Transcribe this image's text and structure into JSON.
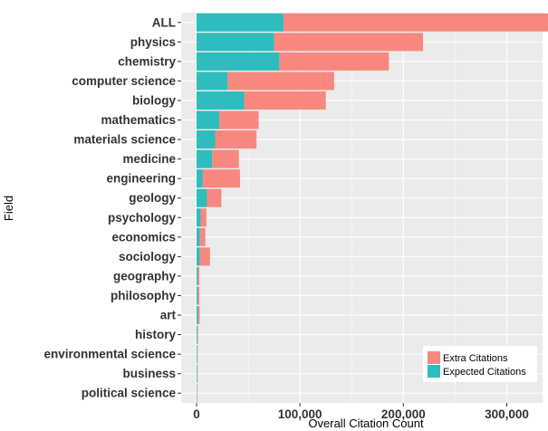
{
  "chart_data": {
    "type": "bar",
    "orientation": "horizontal",
    "stacked": true,
    "xlabel": "Overall Citation Count",
    "ylabel": "Field",
    "xlim": [
      0,
      360000
    ],
    "xticks": [
      0,
      100000,
      200000,
      300000
    ],
    "xtick_labels": [
      "0",
      "100,000",
      "200,000",
      "300,000"
    ],
    "grid": true,
    "legend_position": "bottom-right",
    "categories": [
      "ALL",
      "physics",
      "chemistry",
      "computer science",
      "biology",
      "mathematics",
      "materials science",
      "medicine",
      "engineering",
      "geology",
      "psychology",
      "economics",
      "sociology",
      "geography",
      "philosophy",
      "art",
      "history",
      "environmental science",
      "business",
      "political science"
    ],
    "series": [
      {
        "name": "Expected Citations",
        "color": "#2EBCBE",
        "values": [
          84000,
          75000,
          80000,
          30000,
          46000,
          22000,
          18000,
          15000,
          6000,
          10000,
          4000,
          3000,
          3000,
          1200,
          1200,
          1500,
          800,
          600,
          600,
          400
        ]
      },
      {
        "name": "Extra Citations",
        "color": "#F8887F",
        "values": [
          274000,
          144000,
          106000,
          103000,
          79000,
          38000,
          40000,
          26000,
          36000,
          14000,
          5500,
          5500,
          10000,
          1500,
          1500,
          1500,
          600,
          400,
          400,
          300
        ]
      }
    ],
    "legend": [
      "Extra Citations",
      "Expected Citations"
    ]
  }
}
